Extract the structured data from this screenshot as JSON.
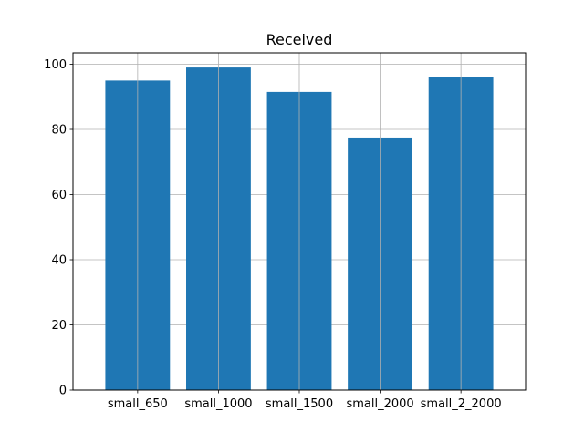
{
  "chart_data": {
    "type": "bar",
    "title": "Received",
    "xlabel": "",
    "ylabel": "",
    "categories": [
      "small_650",
      "small_1000",
      "small_1500",
      "small_2000",
      "small_2_2000"
    ],
    "values": [
      95,
      99,
      91.5,
      77.5,
      96
    ],
    "ylim": [
      0,
      103.5
    ],
    "yticks": [
      0,
      20,
      40,
      60,
      80,
      100
    ],
    "grid": true,
    "bar_color": "#1f77b4",
    "grid_color": "#b0b0b0"
  }
}
